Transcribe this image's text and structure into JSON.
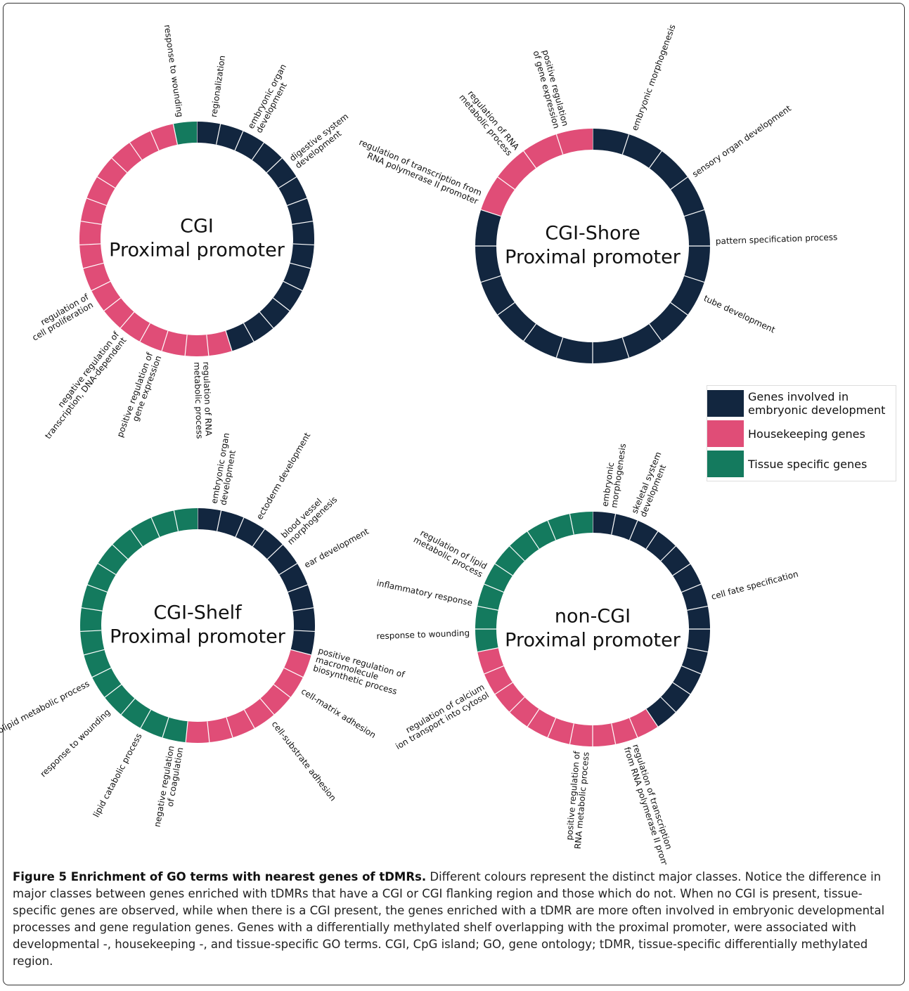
{
  "legend": {
    "items": [
      {
        "label": "Genes involved in embryonic development",
        "color": "#12263f"
      },
      {
        "label": "Housekeeping genes",
        "color": "#e04d77"
      },
      {
        "label": "Tissue specific genes",
        "color": "#147a5e"
      }
    ]
  },
  "rings": [
    {
      "title": [
        "CGI",
        "Proximal promoter"
      ],
      "segments": [
        [
          0,
          14
        ],
        [
          1,
          16
        ],
        [
          2,
          1
        ]
      ],
      "labels": [
        [
          "response to wounding"
        ],
        [
          "regionalization"
        ],
        [
          "embryonic organ",
          "development"
        ],
        [
          "digestive system",
          "development"
        ],
        [
          "regulation of RNA",
          "metabolic process"
        ],
        [
          "positive regulation of",
          "gene expression"
        ],
        [
          "negative regulation of",
          "transcription, DNA-dependent"
        ],
        [
          "regulation of",
          "cell proliferation"
        ]
      ]
    },
    {
      "title": [
        "CGI-Shore",
        "Proximal promoter"
      ],
      "segments": [
        [
          0,
          16
        ],
        [
          1,
          4
        ]
      ],
      "labels": [
        [
          "embryonic morphogenesis"
        ],
        [
          "sensory organ development"
        ],
        [
          "pattern specification process"
        ],
        [
          "tube development"
        ],
        [
          "regulation of transcription from",
          "RNA polymerase II promoter"
        ],
        [
          "regulation of RNA",
          "metabolic process"
        ],
        [
          "positive regulation",
          "of gene expression"
        ]
      ]
    },
    {
      "title": [
        "CGI-Shelf",
        "Proximal promoter"
      ],
      "segments": [
        [
          0,
          9
        ],
        [
          1,
          7
        ],
        [
          2,
          15
        ]
      ],
      "labels": [
        [
          "embryonic organ",
          "development"
        ],
        [
          "ectoderm development"
        ],
        [
          "blood vessel",
          "morphogenesis"
        ],
        [
          "ear development"
        ],
        [
          "positive regulation of",
          "macromolecule",
          "biosynthetic process"
        ],
        [
          "cell-matrix adhesion"
        ],
        [
          "cell-substrate adhesion"
        ],
        [
          "negative regulation",
          "of coagulation"
        ],
        [
          "lipid catabolic process"
        ],
        [
          "response to wounding"
        ],
        [
          "glycerolipid metabolic process"
        ]
      ]
    },
    {
      "title": [
        "non-CGI",
        "Proximal promoter"
      ],
      "segments": [
        [
          0,
          13
        ],
        [
          1,
          10
        ],
        [
          2,
          9
        ]
      ],
      "labels": [
        [
          "embryonic",
          "morphogenesis"
        ],
        [
          "skeletal system",
          "development"
        ],
        [
          "cell fate specification"
        ],
        [
          "regulation of transcription",
          "from RNA polymerase II promoter"
        ],
        [
          "positive regulation of",
          "RNA metabolic process"
        ],
        [
          "regulation of calcium",
          "ion transport into cytosol"
        ],
        [
          "response to wounding"
        ],
        [
          "inflammatory response"
        ],
        [
          "regulation of lipid",
          "metabolic process"
        ]
      ]
    }
  ],
  "caption": {
    "label": "Figure 5 Enrichment of GO terms with nearest genes of tDMRs.",
    "text": "Different colours represent the distinct major classes. Notice the difference in major classes between genes enriched with tDMRs that have a CGI or CGI flanking region and those which do not. When no CGI is present, tissue-specific genes are observed, while when there is a CGI present, the genes enriched with a tDMR are more often involved in embryonic developmental processes and gene regulation genes. Genes with a differentially methylated shelf overlapping with the proximal promoter, were associated with developmental -, housekeeping -, and tissue-specific GO terms. CGI, CpG island; GO, gene ontology; tDMR, tissue-specific differentially methylated region."
  }
}
